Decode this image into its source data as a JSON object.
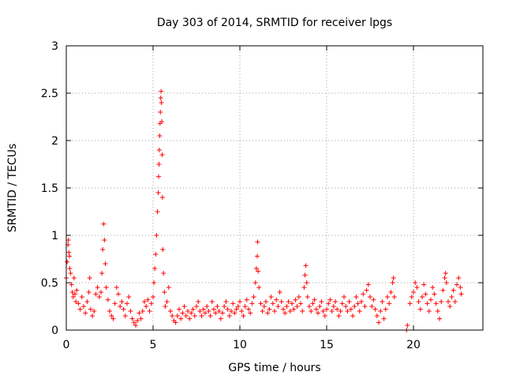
{
  "chart_data": {
    "type": "scatter",
    "title": "Day 303 of 2014, SRMTID for receiver lpgs",
    "xlabel": "GPS time / hours",
    "ylabel": "SRMTID / TECUs",
    "xlim": [
      0,
      24
    ],
    "ylim": [
      0,
      3
    ],
    "x_ticks": [
      0,
      5,
      10,
      15,
      20
    ],
    "x_tick_labels": [
      "0",
      "5",
      "10",
      "15",
      "20"
    ],
    "y_ticks": [
      0,
      0.5,
      1,
      1.5,
      2,
      2.5,
      3
    ],
    "y_tick_labels": [
      "0",
      "0.5",
      "1",
      "1.5",
      "2",
      "2.5",
      "3"
    ],
    "grid": true,
    "marker": "+",
    "color": "#ff0000",
    "series": [
      {
        "name": "SRMTID",
        "points": [
          [
            0.0,
            0.55
          ],
          [
            0.05,
            0.72
          ],
          [
            0.1,
            0.9
          ],
          [
            0.12,
            0.95
          ],
          [
            0.15,
            0.82
          ],
          [
            0.18,
            0.78
          ],
          [
            0.2,
            0.65
          ],
          [
            0.25,
            0.6
          ],
          [
            0.3,
            0.48
          ],
          [
            0.35,
            0.4
          ],
          [
            0.4,
            0.35
          ],
          [
            0.45,
            0.55
          ],
          [
            0.5,
            0.38
          ],
          [
            0.55,
            0.3
          ],
          [
            0.6,
            0.42
          ],
          [
            0.7,
            0.28
          ],
          [
            0.8,
            0.22
          ],
          [
            0.9,
            0.35
          ],
          [
            1.0,
            0.25
          ],
          [
            1.1,
            0.18
          ],
          [
            1.2,
            0.3
          ],
          [
            1.3,
            0.4
          ],
          [
            1.35,
            0.55
          ],
          [
            1.4,
            0.22
          ],
          [
            1.5,
            0.15
          ],
          [
            1.6,
            0.2
          ],
          [
            1.7,
            0.38
          ],
          [
            1.8,
            0.45
          ],
          [
            1.9,
            0.35
          ],
          [
            2.0,
            0.4
          ],
          [
            2.05,
            0.6
          ],
          [
            2.1,
            0.85
          ],
          [
            2.15,
            1.12
          ],
          [
            2.2,
            0.95
          ],
          [
            2.25,
            0.7
          ],
          [
            2.3,
            0.45
          ],
          [
            2.4,
            0.32
          ],
          [
            2.5,
            0.2
          ],
          [
            2.6,
            0.15
          ],
          [
            2.7,
            0.12
          ],
          [
            2.8,
            0.28
          ],
          [
            2.9,
            0.45
          ],
          [
            3.0,
            0.38
          ],
          [
            3.1,
            0.25
          ],
          [
            3.2,
            0.3
          ],
          [
            3.3,
            0.22
          ],
          [
            3.4,
            0.15
          ],
          [
            3.5,
            0.28
          ],
          [
            3.6,
            0.35
          ],
          [
            3.7,
            0.2
          ],
          [
            3.8,
            0.12
          ],
          [
            3.9,
            0.08
          ],
          [
            4.0,
            0.05
          ],
          [
            4.1,
            0.1
          ],
          [
            4.2,
            0.18
          ],
          [
            4.3,
            0.12
          ],
          [
            4.4,
            0.2
          ],
          [
            4.5,
            0.3
          ],
          [
            4.6,
            0.25
          ],
          [
            4.7,
            0.32
          ],
          [
            4.8,
            0.2
          ],
          [
            4.9,
            0.28
          ],
          [
            5.0,
            0.35
          ],
          [
            5.05,
            0.5
          ],
          [
            5.1,
            0.65
          ],
          [
            5.15,
            0.8
          ],
          [
            5.2,
            1.0
          ],
          [
            5.25,
            1.25
          ],
          [
            5.3,
            1.45
          ],
          [
            5.32,
            1.62
          ],
          [
            5.34,
            1.75
          ],
          [
            5.36,
            1.9
          ],
          [
            5.38,
            2.05
          ],
          [
            5.4,
            2.18
          ],
          [
            5.42,
            2.3
          ],
          [
            5.44,
            2.45
          ],
          [
            5.46,
            2.52
          ],
          [
            5.48,
            2.4
          ],
          [
            5.5,
            2.2
          ],
          [
            5.52,
            1.85
          ],
          [
            5.54,
            1.4
          ],
          [
            5.56,
            0.85
          ],
          [
            5.6,
            0.6
          ],
          [
            5.65,
            0.4
          ],
          [
            5.7,
            0.25
          ],
          [
            5.8,
            0.3
          ],
          [
            5.9,
            0.45
          ],
          [
            6.0,
            0.2
          ],
          [
            6.1,
            0.15
          ],
          [
            6.2,
            0.1
          ],
          [
            6.3,
            0.08
          ],
          [
            6.4,
            0.15
          ],
          [
            6.5,
            0.22
          ],
          [
            6.6,
            0.12
          ],
          [
            6.7,
            0.18
          ],
          [
            6.8,
            0.25
          ],
          [
            6.9,
            0.15
          ],
          [
            7.0,
            0.2
          ],
          [
            7.1,
            0.12
          ],
          [
            7.2,
            0.18
          ],
          [
            7.3,
            0.22
          ],
          [
            7.4,
            0.15
          ],
          [
            7.5,
            0.25
          ],
          [
            7.6,
            0.3
          ],
          [
            7.7,
            0.2
          ],
          [
            7.8,
            0.15
          ],
          [
            7.9,
            0.22
          ],
          [
            8.0,
            0.18
          ],
          [
            8.1,
            0.25
          ],
          [
            8.2,
            0.2
          ],
          [
            8.3,
            0.15
          ],
          [
            8.4,
            0.3
          ],
          [
            8.5,
            0.22
          ],
          [
            8.6,
            0.18
          ],
          [
            8.7,
            0.25
          ],
          [
            8.8,
            0.2
          ],
          [
            8.9,
            0.12
          ],
          [
            9.0,
            0.18
          ],
          [
            9.1,
            0.25
          ],
          [
            9.2,
            0.3
          ],
          [
            9.3,
            0.22
          ],
          [
            9.4,
            0.15
          ],
          [
            9.5,
            0.2
          ],
          [
            9.6,
            0.28
          ],
          [
            9.7,
            0.18
          ],
          [
            9.8,
            0.22
          ],
          [
            9.9,
            0.25
          ],
          [
            10.0,
            0.3
          ],
          [
            10.1,
            0.2
          ],
          [
            10.2,
            0.15
          ],
          [
            10.3,
            0.25
          ],
          [
            10.4,
            0.32
          ],
          [
            10.5,
            0.22
          ],
          [
            10.6,
            0.18
          ],
          [
            10.7,
            0.28
          ],
          [
            10.8,
            0.35
          ],
          [
            10.9,
            0.5
          ],
          [
            10.95,
            0.65
          ],
          [
            11.0,
            0.78
          ],
          [
            11.02,
            0.93
          ],
          [
            11.05,
            0.62
          ],
          [
            11.1,
            0.45
          ],
          [
            11.2,
            0.28
          ],
          [
            11.3,
            0.2
          ],
          [
            11.4,
            0.25
          ],
          [
            11.5,
            0.3
          ],
          [
            11.6,
            0.18
          ],
          [
            11.7,
            0.22
          ],
          [
            11.8,
            0.35
          ],
          [
            11.9,
            0.28
          ],
          [
            12.0,
            0.2
          ],
          [
            12.1,
            0.32
          ],
          [
            12.2,
            0.25
          ],
          [
            12.3,
            0.4
          ],
          [
            12.4,
            0.3
          ],
          [
            12.5,
            0.22
          ],
          [
            12.6,
            0.18
          ],
          [
            12.7,
            0.25
          ],
          [
            12.8,
            0.3
          ],
          [
            12.9,
            0.2
          ],
          [
            13.0,
            0.28
          ],
          [
            13.1,
            0.22
          ],
          [
            13.2,
            0.32
          ],
          [
            13.3,
            0.25
          ],
          [
            13.4,
            0.35
          ],
          [
            13.5,
            0.28
          ],
          [
            13.6,
            0.2
          ],
          [
            13.7,
            0.45
          ],
          [
            13.75,
            0.58
          ],
          [
            13.8,
            0.68
          ],
          [
            13.85,
            0.5
          ],
          [
            13.9,
            0.35
          ],
          [
            14.0,
            0.25
          ],
          [
            14.1,
            0.2
          ],
          [
            14.2,
            0.28
          ],
          [
            14.3,
            0.32
          ],
          [
            14.4,
            0.22
          ],
          [
            14.5,
            0.18
          ],
          [
            14.6,
            0.25
          ],
          [
            14.7,
            0.3
          ],
          [
            14.8,
            0.2
          ],
          [
            14.9,
            0.15
          ],
          [
            15.0,
            0.22
          ],
          [
            15.1,
            0.28
          ],
          [
            15.2,
            0.32
          ],
          [
            15.3,
            0.2
          ],
          [
            15.4,
            0.25
          ],
          [
            15.5,
            0.3
          ],
          [
            15.6,
            0.22
          ],
          [
            15.7,
            0.15
          ],
          [
            15.8,
            0.2
          ],
          [
            15.9,
            0.28
          ],
          [
            16.0,
            0.35
          ],
          [
            16.1,
            0.25
          ],
          [
            16.2,
            0.2
          ],
          [
            16.3,
            0.3
          ],
          [
            16.4,
            0.22
          ],
          [
            16.5,
            0.15
          ],
          [
            16.6,
            0.25
          ],
          [
            16.7,
            0.35
          ],
          [
            16.8,
            0.28
          ],
          [
            16.9,
            0.2
          ],
          [
            17.0,
            0.3
          ],
          [
            17.1,
            0.38
          ],
          [
            17.2,
            0.25
          ],
          [
            17.3,
            0.42
          ],
          [
            17.4,
            0.48
          ],
          [
            17.5,
            0.35
          ],
          [
            17.6,
            0.25
          ],
          [
            17.7,
            0.32
          ],
          [
            17.8,
            0.22
          ],
          [
            17.9,
            0.15
          ],
          [
            18.0,
            0.08
          ],
          [
            18.1,
            0.2
          ],
          [
            18.2,
            0.3
          ],
          [
            18.3,
            0.12
          ],
          [
            18.4,
            0.22
          ],
          [
            18.5,
            0.35
          ],
          [
            18.6,
            0.28
          ],
          [
            18.7,
            0.4
          ],
          [
            18.8,
            0.5
          ],
          [
            18.85,
            0.55
          ],
          [
            18.9,
            0.35
          ],
          [
            19.6,
            0.0
          ],
          [
            19.65,
            0.05
          ],
          [
            19.8,
            0.28
          ],
          [
            19.9,
            0.35
          ],
          [
            20.0,
            0.4
          ],
          [
            20.1,
            0.5
          ],
          [
            20.2,
            0.45
          ],
          [
            20.3,
            0.3
          ],
          [
            20.4,
            0.22
          ],
          [
            20.5,
            0.35
          ],
          [
            20.6,
            0.48
          ],
          [
            20.7,
            0.38
          ],
          [
            20.8,
            0.28
          ],
          [
            20.9,
            0.2
          ],
          [
            21.0,
            0.32
          ],
          [
            21.1,
            0.45
          ],
          [
            21.2,
            0.38
          ],
          [
            21.3,
            0.28
          ],
          [
            21.4,
            0.2
          ],
          [
            21.5,
            0.12
          ],
          [
            21.6,
            0.3
          ],
          [
            21.7,
            0.42
          ],
          [
            21.8,
            0.55
          ],
          [
            21.85,
            0.6
          ],
          [
            21.9,
            0.5
          ],
          [
            22.0,
            0.3
          ],
          [
            22.1,
            0.25
          ],
          [
            22.2,
            0.35
          ],
          [
            22.3,
            0.42
          ],
          [
            22.4,
            0.3
          ],
          [
            22.5,
            0.48
          ],
          [
            22.6,
            0.55
          ],
          [
            22.7,
            0.45
          ],
          [
            22.75,
            0.38
          ]
        ]
      }
    ]
  }
}
